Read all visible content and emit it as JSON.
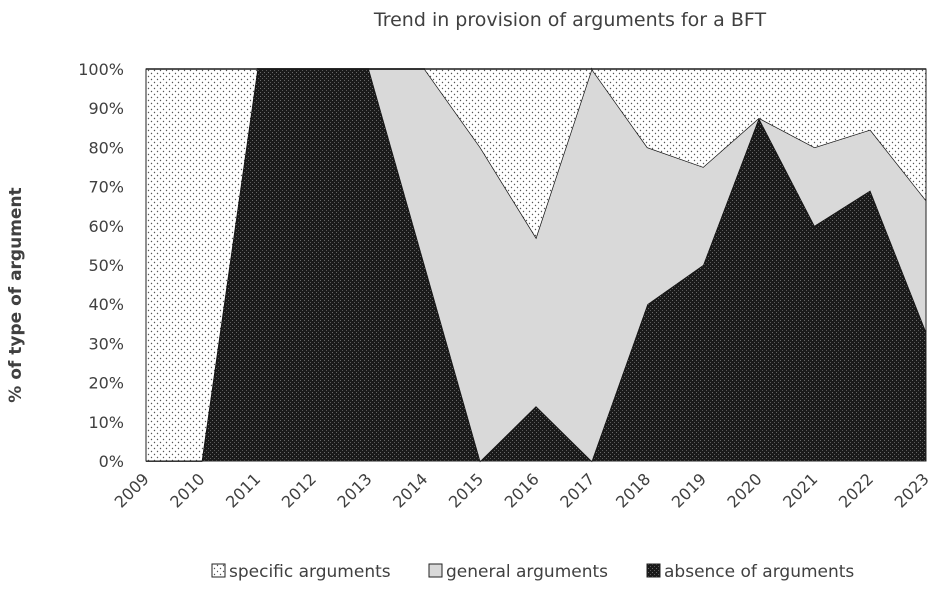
{
  "chart_data": {
    "type": "area",
    "stacked": true,
    "percent": true,
    "title": "Trend in provision of arguments for a BFT",
    "xlabel": "",
    "ylabel": "% of type of argument",
    "categories": [
      "2009",
      "2010",
      "2011",
      "2012",
      "2013",
      "2014",
      "2015",
      "2016",
      "2017",
      "2018",
      "2019",
      "2020",
      "2021",
      "2022",
      "2023"
    ],
    "ylim": [
      0,
      100
    ],
    "yticks": [
      0,
      10,
      20,
      30,
      40,
      50,
      60,
      70,
      80,
      90,
      100
    ],
    "ytick_labels": [
      "0%",
      "10%",
      "20%",
      "30%",
      "40%",
      "50%",
      "60%",
      "70%",
      "80%",
      "90%",
      "100%"
    ],
    "series": [
      {
        "name": "absence of arguments",
        "fill": "dark-hatched",
        "values": [
          0,
          0,
          100,
          100,
          100,
          50,
          0,
          14,
          0,
          40,
          50,
          87.5,
          60,
          69,
          33
        ]
      },
      {
        "name": "general arguments",
        "fill": "light-gray",
        "values": [
          0,
          0,
          0,
          0,
          0,
          50,
          80,
          43,
          100,
          40,
          25,
          0,
          20,
          15.5,
          33.5
        ]
      },
      {
        "name": "specific arguments",
        "fill": "dotted",
        "values": [
          100,
          100,
          0,
          0,
          0,
          0,
          20,
          43,
          0,
          20,
          25,
          12.5,
          20,
          15.5,
          33.5
        ]
      }
    ],
    "legend": {
      "position": "bottom",
      "order": [
        "specific arguments",
        "general arguments",
        "absence of arguments"
      ]
    },
    "colors": {
      "dark": "#1e1e1e",
      "light": "#d9d9d9",
      "dots": "#555555",
      "text": "#404040"
    }
  }
}
